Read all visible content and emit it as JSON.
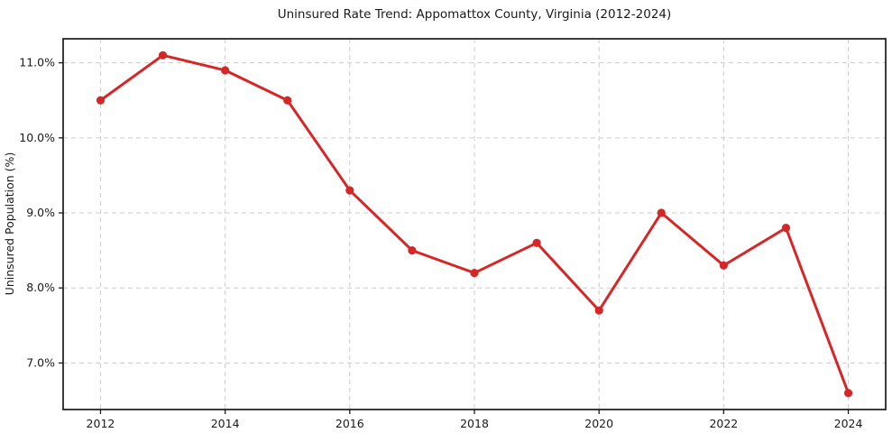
{
  "title": "Uninsured Rate Trend: Appomattox County, Virginia (2012-2024)",
  "chart_data": {
    "type": "line",
    "title": "Uninsured Rate Trend: Appomattox County, Virginia (2012-2024)",
    "xlabel": "",
    "ylabel": "Uninsured Population (%)",
    "x": [
      2012,
      2013,
      2014,
      2015,
      2016,
      2017,
      2018,
      2019,
      2020,
      2021,
      2022,
      2023,
      2024
    ],
    "values": [
      10.5,
      11.1,
      10.9,
      10.5,
      9.3,
      8.5,
      8.2,
      8.6,
      7.7,
      9.0,
      8.3,
      8.8,
      6.6
    ],
    "x_tick_values": [
      2012,
      2014,
      2016,
      2018,
      2020,
      2022,
      2024
    ],
    "x_tick_labels": [
      "2012",
      "2014",
      "2016",
      "2018",
      "2020",
      "2022",
      "2024"
    ],
    "y_tick_values": [
      7,
      8,
      9,
      10,
      11
    ],
    "y_tick_labels": [
      "7.0%",
      "8.0%",
      "9.0%",
      "10.0%",
      "11.0%"
    ],
    "xlim": [
      2011.4,
      2024.6
    ],
    "ylim": [
      6.38,
      11.32
    ],
    "grid": true,
    "legend_position": "none",
    "line_color": "#d62728",
    "marker_color": "#d62728",
    "grid_color": "#cccccc",
    "spine_color": "#1a1a1a",
    "background_color": "#ffffff"
  }
}
